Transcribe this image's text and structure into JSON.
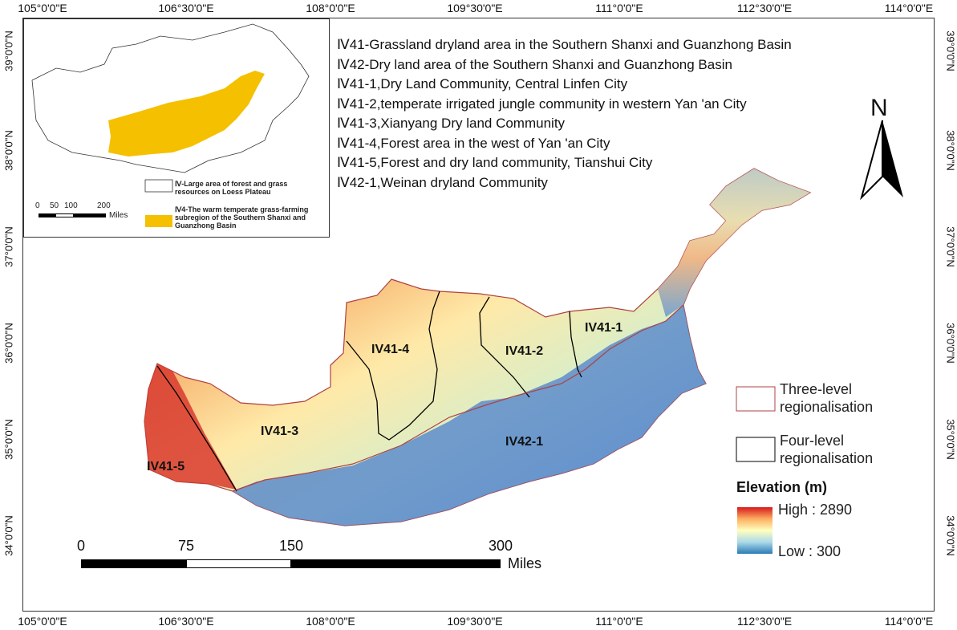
{
  "axes": {
    "top_ticks": [
      "105°0'0\"E",
      "106°30'0\"E",
      "108°0'0\"E",
      "109°30'0\"E",
      "111°0'0\"E",
      "112°30'0\"E",
      "114°0'0\"E"
    ],
    "bottom_ticks": [
      "105°0'0\"E",
      "106°30'0\"E",
      "108°0'0\"E",
      "109°30'0\"E",
      "111°0'0\"E",
      "112°30'0\"E",
      "114°0'0\"E"
    ],
    "left_ticks": [
      "39°0'0\"N",
      "38°0'0\"N",
      "37°0'0\"N",
      "36°0'0\"N",
      "35°0'0\"N",
      "34°0'0\"N"
    ],
    "right_ticks": [
      "39°0'0\"N",
      "38°0'0\"N",
      "37°0'0\"N",
      "36°0'0\"N",
      "35°0'0\"N",
      "34°0'0\"N"
    ]
  },
  "region_descriptions": [
    "Ⅳ41-Grassland dryland area in the Southern Shanxi and Guanzhong Basin",
    "Ⅳ42-Dry land area of the Southern Shanxi and Guanzhong Basin",
    "Ⅳ41-1,Dry Land Community, Central Linfen City",
    "Ⅳ41-2,temperate irrigated jungle community in western Yan 'an City",
    "Ⅳ41-3,Xianyang Dry land Community",
    "Ⅳ41-4,Forest area in the west of Yan 'an City",
    "Ⅳ41-5,Forest and dry land community, Tianshui City",
    "Ⅳ42-1,Weinan dryland Community"
  ],
  "inset": {
    "legend_outline": "Ⅳ-Large area of forest and grass resources on Loess Plateau",
    "legend_fill": "Ⅳ4-The warm temperate grass-farming subregion of the Southern Shanxi and Guanzhong Basin",
    "scale_labels": [
      "0",
      "50",
      "100",
      "200"
    ],
    "scale_unit": "Miles",
    "fill_color": "#f5c000"
  },
  "region_labels": [
    "IV41-1",
    "IV41-2",
    "IV41-3",
    "IV41-4",
    "IV41-5",
    "IV42-1"
  ],
  "north_arrow": "N",
  "boundary_legend": {
    "three_level": "Three-level regionalisation",
    "three_level_color": "#b04040",
    "four_level": "Four-level regionalisation",
    "four_level_color": "#000000"
  },
  "elevation_legend": {
    "title": "Elevation (m)",
    "high": "High : 2890",
    "low": "Low : 300",
    "ramp_colors": [
      "#d7191c",
      "#fdae61",
      "#ffffbf",
      "#abd9e9",
      "#2c7bb6"
    ]
  },
  "scale_bar": {
    "labels": [
      "0",
      "75",
      "150",
      "300"
    ],
    "unit": "Miles"
  }
}
